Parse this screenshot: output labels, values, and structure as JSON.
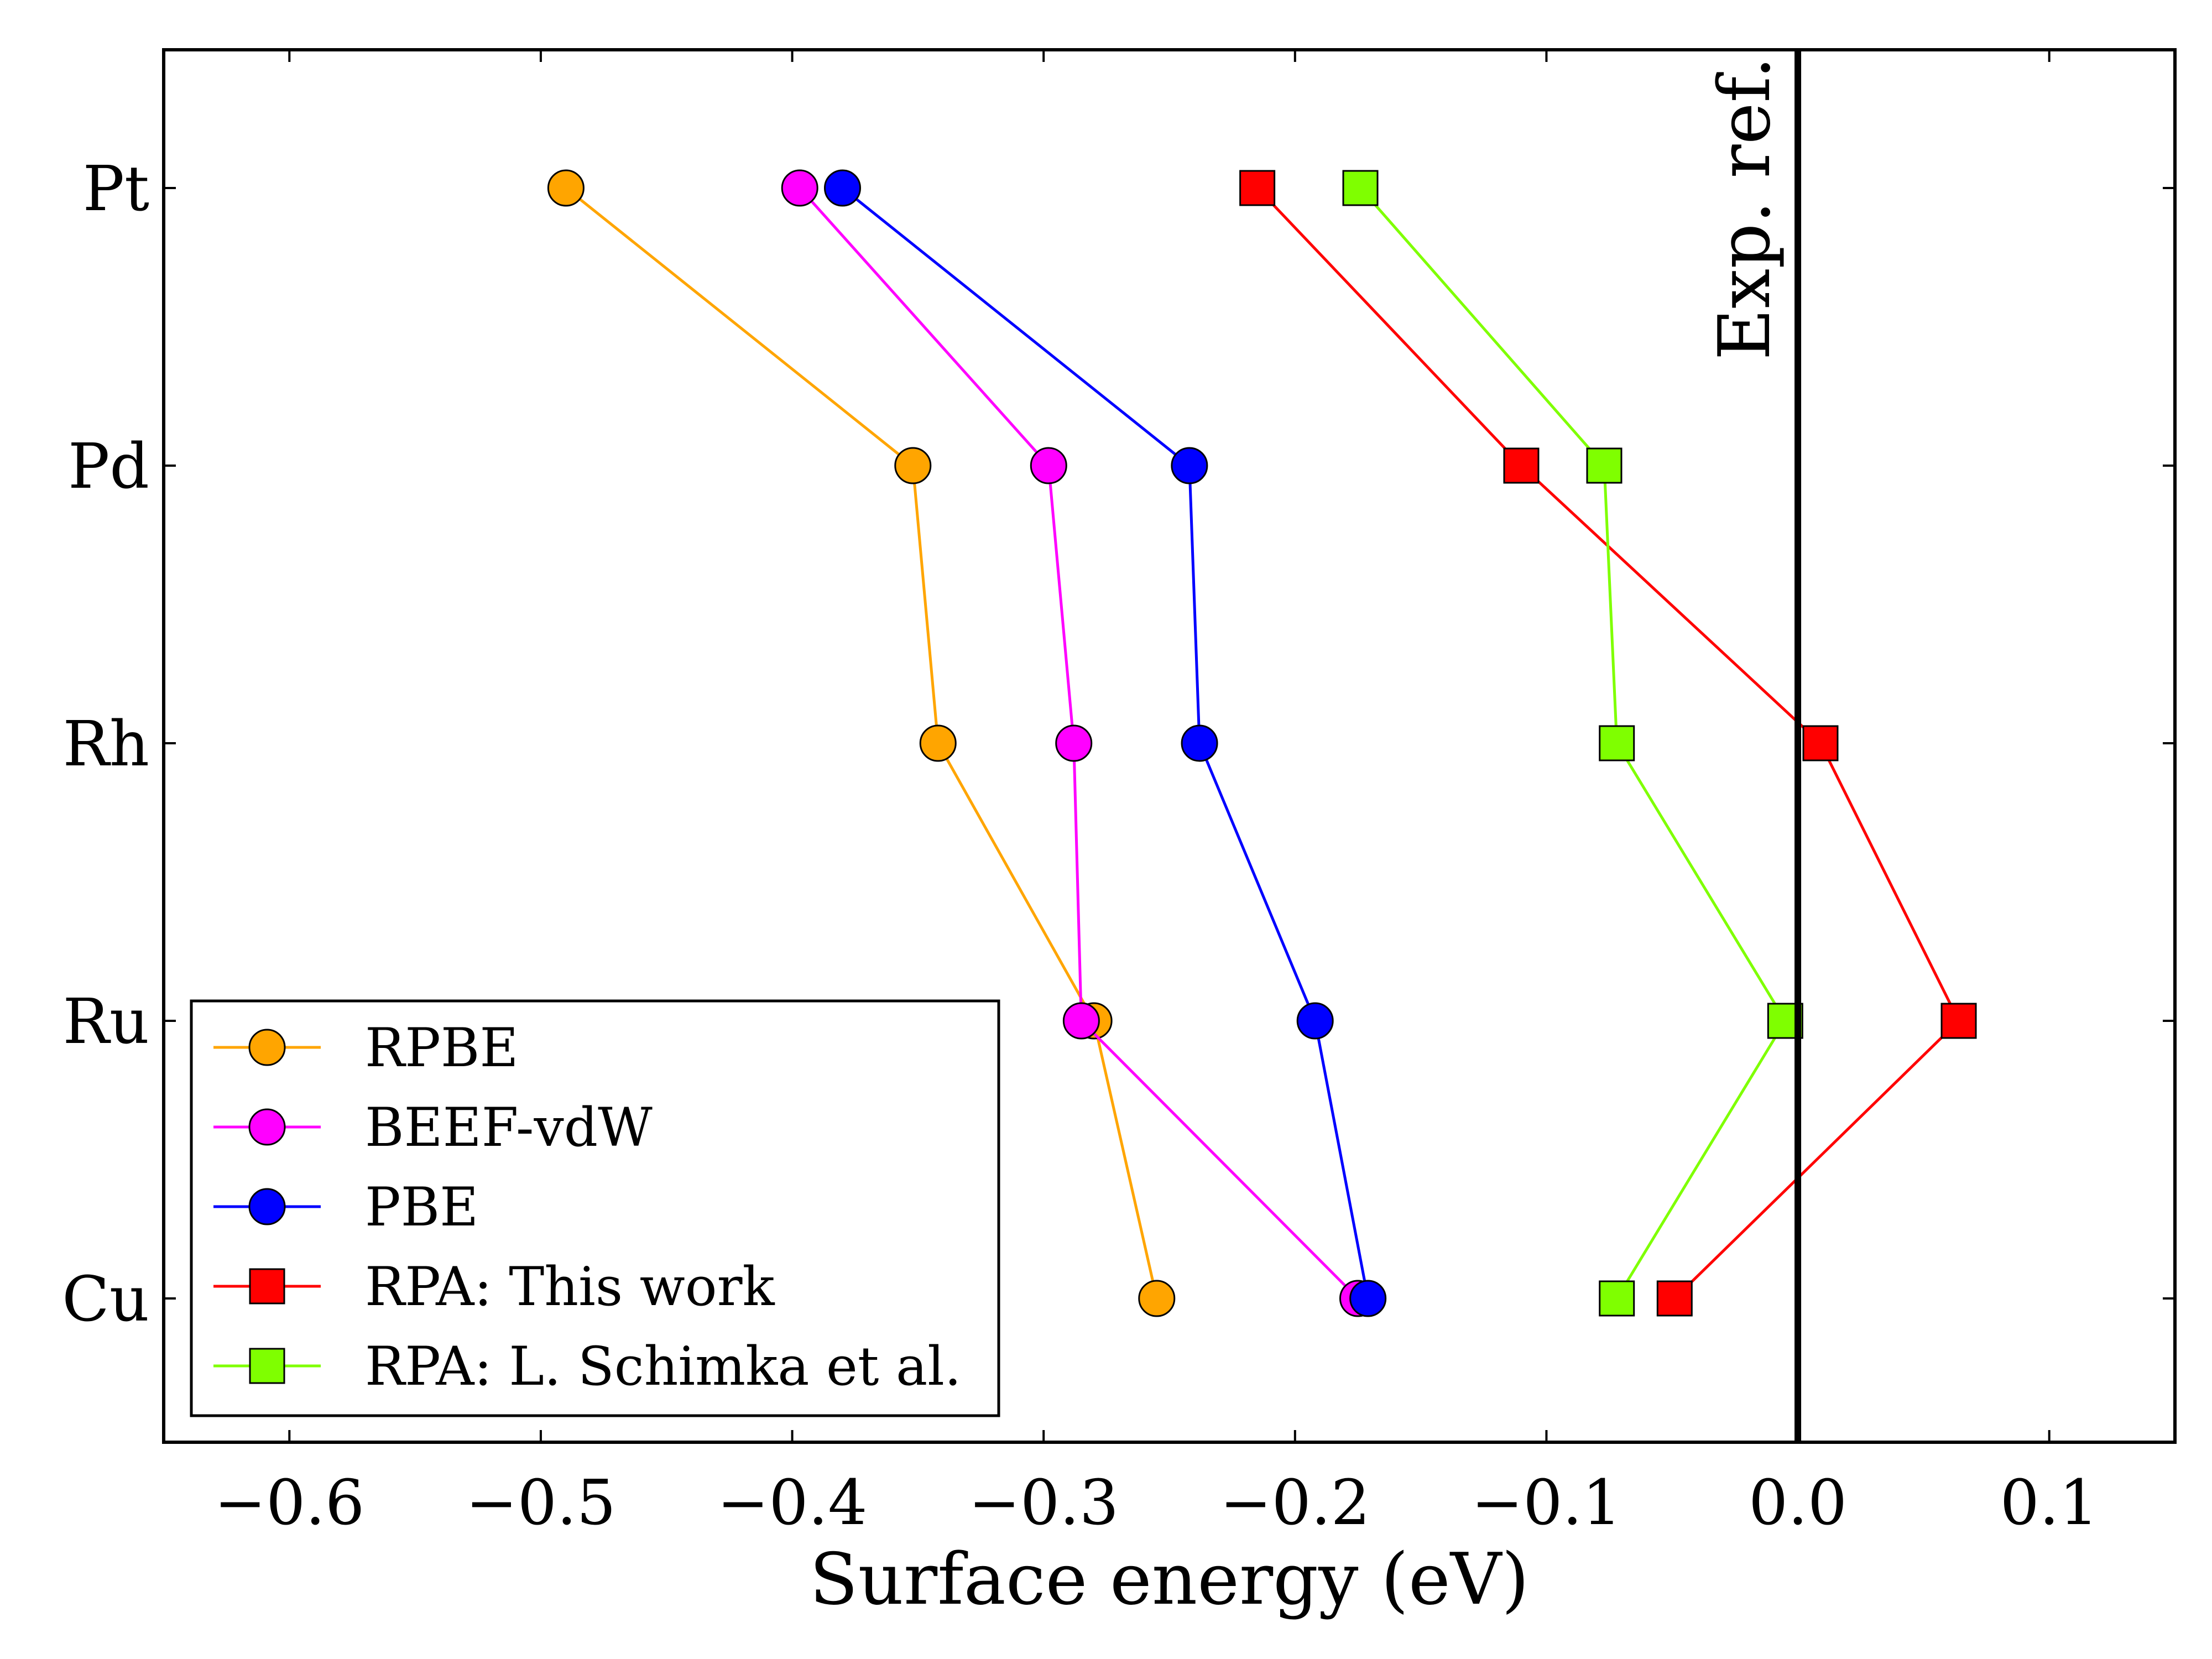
{
  "chart_data": {
    "type": "line",
    "orientation": "horizontal",
    "title": "",
    "xlabel": "Surface energy (eV)",
    "ylabel": "",
    "xlim": [
      -0.65,
      0.15
    ],
    "x_ticks": [
      -0.6,
      -0.5,
      -0.4,
      -0.3,
      -0.2,
      -0.1,
      0.0,
      0.1
    ],
    "x_tick_labels": [
      "−0.6",
      "−0.5",
      "−0.4",
      "−0.3",
      "−0.2",
      "−0.1",
      "0.0",
      "0.1"
    ],
    "categories": [
      "Pt",
      "Pd",
      "Rh",
      "Ru",
      "Cu"
    ],
    "grid": false,
    "legend_position": "lower-left",
    "reference_line": {
      "x": 0.0,
      "label": "Exp. ref.",
      "color": "#000000"
    },
    "series": [
      {
        "name": "RPBE",
        "color": "#FFA500",
        "marker": "circle",
        "values": [
          -0.49,
          -0.352,
          -0.342,
          -0.28,
          -0.255
        ]
      },
      {
        "name": "BEEF-vdW",
        "color": "#FF00FF",
        "marker": "circle",
        "values": [
          -0.397,
          -0.298,
          -0.288,
          -0.285,
          -0.175
        ]
      },
      {
        "name": "PBE",
        "color": "#0000FF",
        "marker": "circle",
        "values": [
          -0.38,
          -0.242,
          -0.238,
          -0.192,
          -0.171
        ]
      },
      {
        "name": "RPA: This work",
        "color": "#FF0000",
        "marker": "square",
        "values": [
          -0.215,
          -0.11,
          0.009,
          0.064,
          -0.049
        ]
      },
      {
        "name": "RPA: L. Schimka et al.",
        "color": "#7FFF00",
        "marker": "square",
        "values": [
          -0.174,
          -0.077,
          -0.072,
          -0.005,
          -0.072
        ]
      }
    ]
  }
}
